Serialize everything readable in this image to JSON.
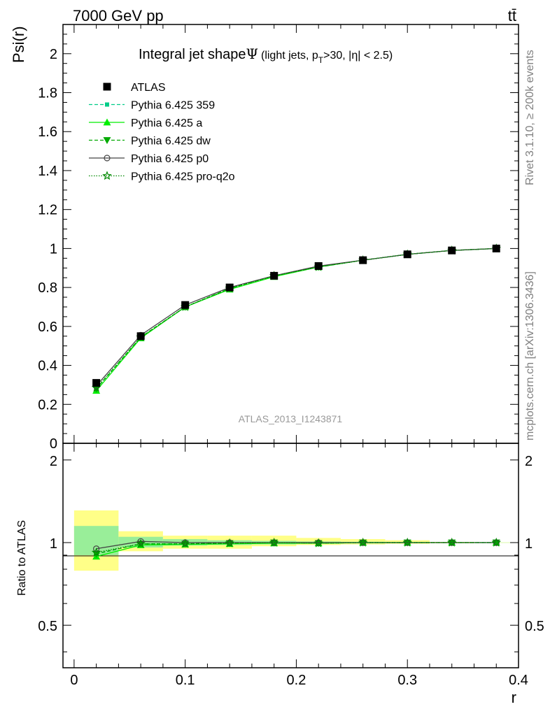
{
  "header": {
    "energy": "7000 GeV pp",
    "process": "tt̄"
  },
  "side_labels": {
    "rivet": "Rivet 3.1.10, ≥ 200k events",
    "mcplots": "mcplots.cern.ch [arXiv:1306.3436]"
  },
  "chart_data": [
    {
      "type": "line",
      "panel": "main",
      "title_main": "Integral jet shape",
      "title_symbol": "Ψ",
      "title_sub_a": "(light jets, p",
      "title_sub_b": "T",
      "title_sub_c": ">30, |η| < 2.5)",
      "ylabel": "Psi(r)",
      "xlabel": "r",
      "analysis_id": "ATLAS_2013_I1243871",
      "xlim": [
        -0.01,
        0.4
      ],
      "ylim": [
        0,
        2.15
      ],
      "x_ticks": [
        0,
        0.1,
        0.2,
        0.3,
        0.4
      ],
      "x_tick_labels": [
        "0",
        "0.1",
        "0.2",
        "0.3",
        "0.4"
      ],
      "y_ticks": [
        0,
        0.2,
        0.4,
        0.6,
        0.8,
        1,
        1.2,
        1.4,
        1.6,
        1.8,
        2
      ],
      "y_tick_labels": [
        "0",
        "0.2",
        "0.4",
        "0.6",
        "0.8",
        "1",
        "1.2",
        "1.4",
        "1.6",
        "1.8",
        "2"
      ],
      "x": [
        0.02,
        0.06,
        0.1,
        0.14,
        0.18,
        0.22,
        0.26,
        0.3,
        0.34,
        0.38
      ],
      "legend_position": "top-left",
      "series": [
        {
          "name": "ATLAS",
          "marker": "square",
          "color": "#000000",
          "style": "none",
          "values": [
            0.31,
            0.55,
            0.71,
            0.8,
            0.86,
            0.91,
            0.94,
            0.97,
            0.99,
            1.0
          ]
        },
        {
          "name": "Pythia 6.425 359",
          "marker": "small-square",
          "color": "#00cc88",
          "style": "dashed",
          "values": [
            0.28,
            0.545,
            0.7,
            0.795,
            0.86,
            0.905,
            0.94,
            0.97,
            0.99,
            1.0
          ]
        },
        {
          "name": "Pythia 6.425 a",
          "marker": "triangle-up",
          "color": "#00ee00",
          "style": "solid",
          "values": [
            0.27,
            0.54,
            0.7,
            0.79,
            0.855,
            0.905,
            0.94,
            0.97,
            0.99,
            1.0
          ]
        },
        {
          "name": "Pythia 6.425 dw",
          "marker": "triangle-down",
          "color": "#00aa00",
          "style": "dashed",
          "values": [
            0.28,
            0.545,
            0.7,
            0.795,
            0.86,
            0.905,
            0.94,
            0.97,
            0.99,
            1.0
          ]
        },
        {
          "name": "Pythia 6.425 p0",
          "marker": "open-circle",
          "color": "#444444",
          "style": "solid",
          "values": [
            0.295,
            0.555,
            0.71,
            0.8,
            0.86,
            0.91,
            0.94,
            0.97,
            0.99,
            1.0
          ]
        },
        {
          "name": "Pythia 6.425 pro-q2o",
          "marker": "open-star",
          "color": "#008800",
          "style": "dotted",
          "values": [
            0.285,
            0.545,
            0.7,
            0.795,
            0.86,
            0.905,
            0.94,
            0.97,
            0.99,
            1.0
          ]
        }
      ]
    },
    {
      "type": "line",
      "panel": "ratio",
      "ylabel": "Ratio to ATLAS",
      "xlabel": "r",
      "xlim": [
        -0.01,
        0.4
      ],
      "ylim": [
        0.35,
        2.3
      ],
      "y_ticks": [
        0.5,
        1,
        2
      ],
      "y_tick_labels": [
        "0.5",
        "1",
        "2"
      ],
      "x": [
        0.02,
        0.06,
        0.1,
        0.14,
        0.18,
        0.22,
        0.26,
        0.3,
        0.34,
        0.38
      ],
      "bins": [
        [
          0.0,
          0.04
        ],
        [
          0.04,
          0.08
        ],
        [
          0.08,
          0.12
        ],
        [
          0.12,
          0.16
        ],
        [
          0.16,
          0.2
        ],
        [
          0.2,
          0.24
        ],
        [
          0.24,
          0.28
        ],
        [
          0.28,
          0.32
        ],
        [
          0.32,
          0.36
        ],
        [
          0.36,
          0.4
        ]
      ],
      "band_stat": [
        [
          0.9,
          1.15
        ],
        [
          0.96,
          1.05
        ],
        [
          0.975,
          1.03
        ],
        [
          0.98,
          1.02
        ],
        [
          0.985,
          1.015
        ],
        [
          0.99,
          1.01
        ],
        [
          0.993,
          1.007
        ],
        [
          0.995,
          1.005
        ],
        [
          0.998,
          1.002
        ],
        [
          0.999,
          1.001
        ]
      ],
      "band_total": [
        [
          0.79,
          1.31
        ],
        [
          0.93,
          1.1
        ],
        [
          0.95,
          1.06
        ],
        [
          0.95,
          1.06
        ],
        [
          0.97,
          1.06
        ],
        [
          0.98,
          1.04
        ],
        [
          0.985,
          1.03
        ],
        [
          0.99,
          1.02
        ],
        [
          0.995,
          1.005
        ],
        [
          0.998,
          1.002
        ]
      ],
      "band_stat_color": "#99ee99",
      "band_total_color": "#ffff88",
      "series": [
        {
          "name": "Pythia 6.425 359",
          "marker": "small-square",
          "color": "#00cc88",
          "style": "dashed",
          "values": [
            0.91,
            0.99,
            0.99,
            0.995,
            1.0,
            0.995,
            1.0,
            1.0,
            1.0,
            1.0
          ]
        },
        {
          "name": "Pythia 6.425 a",
          "marker": "triangle-up",
          "color": "#00ee00",
          "style": "solid",
          "values": [
            0.89,
            0.98,
            0.985,
            0.99,
            0.995,
            0.995,
            1.0,
            1.0,
            1.0,
            1.0
          ]
        },
        {
          "name": "Pythia 6.425 dw",
          "marker": "triangle-down",
          "color": "#00aa00",
          "style": "dashed",
          "values": [
            0.91,
            0.99,
            0.99,
            0.995,
            1.0,
            0.995,
            1.0,
            1.0,
            1.0,
            1.0
          ]
        },
        {
          "name": "Pythia 6.425 p0",
          "marker": "open-circle",
          "color": "#444444",
          "style": "solid",
          "values": [
            0.95,
            1.01,
            1.0,
            1.0,
            1.0,
            1.0,
            1.0,
            1.0,
            1.0,
            1.0
          ]
        },
        {
          "name": "Pythia 6.425 pro-q2o",
          "marker": "open-star",
          "color": "#008800",
          "style": "dotted",
          "values": [
            0.92,
            0.99,
            0.99,
            0.995,
            1.0,
            0.995,
            1.0,
            1.0,
            1.0,
            1.0
          ]
        }
      ]
    }
  ]
}
